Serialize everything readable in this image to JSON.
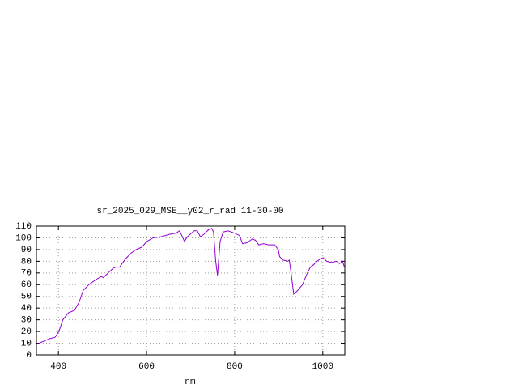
{
  "chart_data": {
    "type": "line",
    "title": "sr_2025_029_MSE__y02_r_rad 11-30-00",
    "x_label": "nm",
    "xlim": [
      350,
      1050
    ],
    "xticks": [
      400,
      600,
      800,
      1000
    ],
    "ylim": [
      0,
      110
    ],
    "yticks": [
      0,
      10,
      20,
      30,
      40,
      50,
      60,
      70,
      80,
      90,
      100,
      110
    ],
    "grid": true,
    "series": [
      {
        "color": "#9400d3",
        "x": [
          350,
          368,
          381,
          392,
          401,
          410,
          423,
          436,
          447,
          456,
          469,
          484,
          497,
          502,
          510,
          524,
          530,
          539,
          552,
          565,
          576,
          589,
          601,
          615,
          634,
          652,
          667,
          675,
          680,
          686,
          693,
          708,
          715,
          722,
          730,
          741,
          748,
          752,
          757,
          761,
          767,
          774,
          785,
          800,
          811,
          818,
          829,
          840,
          847,
          855,
          866,
          877,
          891,
          899,
          902,
          910,
          921,
          924,
          928,
          934,
          943,
          954,
          965,
          972,
          979,
          987,
          994,
          1001,
          1009,
          1020,
          1031,
          1038,
          1045,
          1049
        ],
        "values": [
          9,
          12,
          14,
          15,
          20,
          30,
          36,
          38,
          45,
          55,
          60,
          64,
          67,
          66,
          69,
          74,
          75,
          75,
          82,
          87,
          90,
          92,
          97,
          100,
          101,
          103,
          104,
          106,
          102,
          97,
          101,
          106,
          106,
          101,
          103,
          107,
          108,
          105,
          80,
          68,
          97,
          105,
          106,
          104,
          102,
          95,
          96,
          99,
          98,
          94,
          95,
          94,
          94,
          90,
          84,
          81,
          80,
          81,
          70,
          52,
          55,
          60,
          70,
          75,
          77,
          80,
          82,
          83,
          80,
          79,
          80,
          78,
          80,
          75
        ]
      }
    ]
  }
}
